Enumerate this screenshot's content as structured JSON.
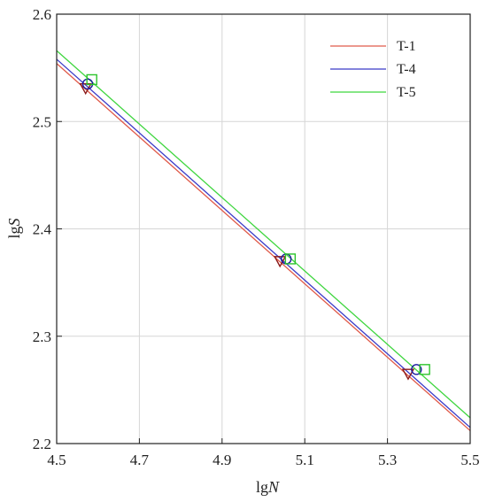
{
  "chart_data": {
    "type": "line",
    "xlabel_main": "lg",
    "xlabel_var": "N",
    "ylabel_main": "lg",
    "ylabel_var": "S",
    "xlim": [
      4.5,
      5.5
    ],
    "ylim": [
      2.2,
      2.6
    ],
    "xticks": [
      4.5,
      4.7,
      4.9,
      5.1,
      5.3,
      5.5
    ],
    "xtick_labels": [
      "4.5",
      "4.7",
      "4.9",
      "5.1",
      "5.3",
      "5.5"
    ],
    "yticks": [
      2.2,
      2.3,
      2.4,
      2.5,
      2.6
    ],
    "ytick_labels": [
      "2.2",
      "2.3",
      "2.4",
      "2.5",
      "2.6"
    ],
    "grid": true,
    "legend_position": "top-right",
    "series": [
      {
        "name": "T-1",
        "color": "#e05a4a",
        "marker_color": "#8b1a1a",
        "marker": "triangle-down",
        "line": [
          [
            4.5,
            2.554
          ],
          [
            5.5,
            2.212
          ]
        ],
        "points": [
          [
            4.57,
            2.531
          ],
          [
            5.04,
            2.37
          ],
          [
            5.35,
            2.265
          ]
        ]
      },
      {
        "name": "T-4",
        "color": "#3a3ac8",
        "marker_color": "#1a1aa0",
        "marker": "circle",
        "line": [
          [
            4.5,
            2.558
          ],
          [
            5.5,
            2.215
          ]
        ],
        "points": [
          [
            4.575,
            2.535
          ],
          [
            5.055,
            2.372
          ],
          [
            5.37,
            2.269
          ]
        ]
      },
      {
        "name": "T-5",
        "color": "#3fd63f",
        "marker_color": "#2cc42c",
        "marker": "square",
        "line": [
          [
            4.5,
            2.566
          ],
          [
            5.5,
            2.224
          ]
        ],
        "points": [
          [
            4.585,
            2.539
          ],
          [
            5.065,
            2.372
          ],
          [
            5.39,
            2.269
          ]
        ]
      }
    ]
  }
}
